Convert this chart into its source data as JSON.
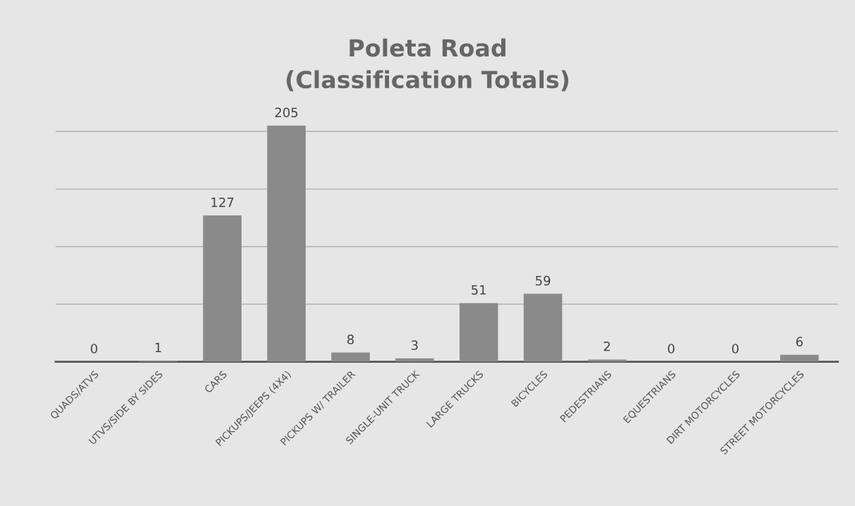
{
  "chart_data": {
    "type": "bar",
    "title": "Poleta Road\n(Classification Totals)",
    "categories": [
      "QUADS/ATVS",
      "UTVS/SIDE BY SIDES",
      "CARS",
      "PICKUPS/JEEPS (4X4)",
      "PICKUPS W/ TRAILER",
      "SINGLE-UNIT TRUCK",
      "LARGE TRUCKS",
      "BICYCLES",
      "PEDESTRIANS",
      "EQUESTRIANS",
      "DIRT MOTORCYCLES",
      "STREET MOTORCYCLES"
    ],
    "values": [
      0,
      1,
      127,
      205,
      8,
      3,
      51,
      59,
      2,
      0,
      0,
      6
    ],
    "color": "#8a8a8a",
    "yticks": [
      {
        "value": 0,
        "label": null
      },
      {
        "value": 50,
        "label": null
      },
      {
        "value": 100,
        "label": null
      },
      {
        "value": 150,
        "label": null
      },
      {
        "value": 200,
        "label": null
      }
    ],
    "grid": "y",
    "data_labels": true
  }
}
